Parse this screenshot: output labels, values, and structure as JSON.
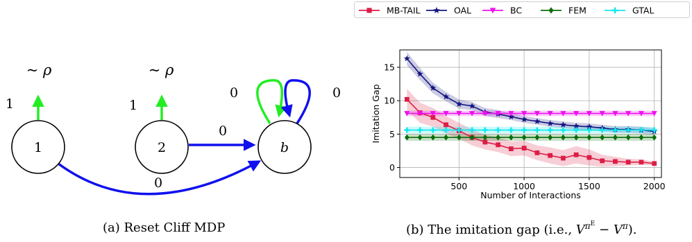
{
  "figure_a": {
    "caption": "(a) Reset Cliff MDP",
    "states": [
      {
        "label": "1",
        "reset_label": "~ ρ",
        "reset_reward": "1"
      },
      {
        "label": "2",
        "reset_label": "~ ρ",
        "reset_reward": "1"
      },
      {
        "label": "b",
        "self_loop_rewards": [
          "0",
          "0"
        ]
      }
    ],
    "edges": [
      {
        "from": "2",
        "to": "b",
        "reward": "0"
      },
      {
        "from": "1",
        "to": "b",
        "reward": "0"
      }
    ],
    "colors": {
      "green": "#22ee22",
      "blue": "#1010ee"
    }
  },
  "figure_b": {
    "caption_prefix": "(b) The imitation gap (i.e., ",
    "caption_suffix": ").",
    "formula_v": "V",
    "formula_pi": "π",
    "formula_e": "E",
    "formula_minus": "−"
  },
  "chart_data": {
    "type": "line",
    "title": "",
    "xlabel": "Number of Interactions",
    "ylabel": "Imitation Gap",
    "xlim": [
      45,
      2055
    ],
    "ylim": [
      -1.5,
      17.6
    ],
    "xticks": [
      500,
      1000,
      1500,
      2000
    ],
    "yticks": [
      0,
      5,
      10,
      15
    ],
    "grid": true,
    "legend_position": "top",
    "x": [
      100,
      200,
      300,
      400,
      500,
      600,
      700,
      800,
      900,
      1000,
      1100,
      1200,
      1300,
      1400,
      1500,
      1600,
      1700,
      1800,
      1900,
      2000
    ],
    "series": [
      {
        "name": "MB-TAIL",
        "color": "#dc1e46",
        "marker": "square",
        "values": [
          10.2,
          8.2,
          7.5,
          6.4,
          5.5,
          4.5,
          3.8,
          3.4,
          2.8,
          2.9,
          2.2,
          1.8,
          1.4,
          1.9,
          1.5,
          1.0,
          0.9,
          0.8,
          0.8,
          0.6
        ],
        "band": [
          1.6,
          1.5,
          1.4,
          1.3,
          1.2,
          1.2,
          1.1,
          1.1,
          1.1,
          1.1,
          1.1,
          1.2,
          1.2,
          1.3,
          1.2,
          0.9,
          0.7,
          0.5,
          0.4,
          0.3
        ]
      },
      {
        "name": "OAL",
        "color": "#151580",
        "marker": "star",
        "values": [
          16.3,
          14.0,
          11.9,
          10.6,
          9.5,
          9.2,
          8.3,
          8.0,
          7.6,
          7.2,
          6.9,
          6.6,
          6.4,
          6.2,
          6.1,
          5.9,
          5.7,
          5.7,
          5.6,
          5.4
        ],
        "band": [
          1.0,
          0.9,
          0.8,
          0.7,
          0.7,
          0.6,
          0.6,
          0.6,
          0.5,
          0.5,
          0.5,
          0.5,
          0.5,
          0.5,
          0.5,
          0.5,
          0.5,
          0.5,
          0.5,
          0.5
        ]
      },
      {
        "name": "BC",
        "color": "#ee10ee",
        "marker": "triangle-down",
        "values": [
          8.1,
          8.1,
          8.1,
          8.1,
          8.1,
          8.1,
          8.1,
          8.1,
          8.1,
          8.1,
          8.1,
          8.1,
          8.1,
          8.1,
          8.1,
          8.1,
          8.1,
          8.1,
          8.1,
          8.1
        ],
        "band": [
          0.4,
          0.4,
          0.4,
          0.4,
          0.4,
          0.4,
          0.4,
          0.4,
          0.4,
          0.4,
          0.4,
          0.4,
          0.4,
          0.4,
          0.4,
          0.4,
          0.4,
          0.4,
          0.4,
          0.4
        ]
      },
      {
        "name": "FEM",
        "color": "#0a6e0a",
        "marker": "diamond",
        "values": [
          4.5,
          4.5,
          4.5,
          4.5,
          4.5,
          4.5,
          4.5,
          4.5,
          4.5,
          4.5,
          4.5,
          4.5,
          4.5,
          4.5,
          4.5,
          4.5,
          4.5,
          4.5,
          4.5,
          4.5
        ],
        "band": [
          0.5,
          0.5,
          0.5,
          0.5,
          0.5,
          0.5,
          0.5,
          0.5,
          0.5,
          0.5,
          0.5,
          0.5,
          0.5,
          0.5,
          0.5,
          0.5,
          0.5,
          0.5,
          0.5,
          0.5
        ]
      },
      {
        "name": "GTAL",
        "color": "#10e8ee",
        "marker": "plus",
        "values": [
          5.6,
          5.6,
          5.6,
          5.6,
          5.6,
          5.6,
          5.6,
          5.6,
          5.6,
          5.6,
          5.6,
          5.6,
          5.6,
          5.6,
          5.6,
          5.6,
          5.6,
          5.6,
          5.6,
          5.6
        ],
        "band": [
          0.5,
          0.5,
          0.5,
          0.5,
          0.5,
          0.5,
          0.5,
          0.5,
          0.5,
          0.5,
          0.5,
          0.5,
          0.5,
          0.5,
          0.5,
          0.5,
          0.5,
          0.5,
          0.5,
          0.5
        ]
      }
    ]
  }
}
